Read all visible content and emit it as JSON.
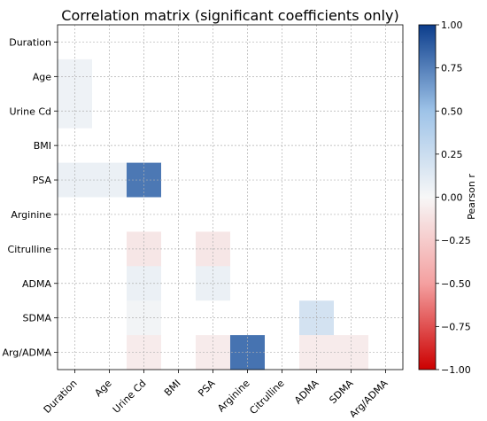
{
  "chart_data": {
    "type": "heatmap",
    "title": "Correlation matrix (significant coefficients only)",
    "variables": [
      "Duration",
      "Age",
      "Urine Cd",
      "BMI",
      "PSA",
      "Arginine",
      "Citrulline",
      "ADMA",
      "SDMA",
      "Arg/ADMA"
    ],
    "x_labels": [
      "Duration",
      "Age",
      "Urine Cd",
      "BMI",
      "PSA",
      "Arginine",
      "Citrulline",
      "ADMA",
      "SDMA",
      "Arg/ADMA"
    ],
    "y_labels": [
      "Duration",
      "Age",
      "Urine Cd",
      "BMI",
      "PSA",
      "Arginine",
      "Citrulline",
      "ADMA",
      "SDMA",
      "Arg/ADMA"
    ],
    "values": [
      [
        0,
        0,
        0,
        0,
        0,
        0,
        0,
        0,
        0,
        0
      ],
      [
        0.05,
        0,
        0,
        0,
        0,
        0,
        0,
        0,
        0,
        0
      ],
      [
        0.05,
        0,
        0,
        0,
        0,
        0,
        0,
        0,
        0,
        0
      ],
      [
        0,
        0,
        0,
        0,
        0,
        0,
        0,
        0,
        0,
        0
      ],
      [
        0.07,
        0.07,
        0.78,
        0,
        0,
        0,
        0,
        0,
        0,
        0
      ],
      [
        0,
        0,
        0,
        0,
        0,
        0,
        0,
        0,
        0,
        0
      ],
      [
        0,
        0,
        -0.1,
        0,
        -0.1,
        0,
        0,
        0,
        0,
        0
      ],
      [
        0,
        0,
        0.07,
        0,
        0.07,
        0,
        0,
        0,
        0,
        0
      ],
      [
        0,
        0,
        0.03,
        0,
        0,
        0,
        0,
        0.2,
        0,
        0
      ],
      [
        0,
        0,
        -0.07,
        0,
        -0.07,
        0.8,
        0,
        -0.07,
        -0.07,
        0
      ]
    ],
    "colorbar": {
      "label": "Pearson r",
      "range": [
        -1.0,
        1.0
      ],
      "ticks": [
        "1.00",
        "0.75",
        "0.50",
        "0.25",
        "0.00",
        "−0.25",
        "−0.50",
        "−0.75",
        "−1.00"
      ],
      "tick_values": [
        1.0,
        0.75,
        0.5,
        0.25,
        0.0,
        -0.25,
        -0.5,
        -0.75,
        -1.0
      ],
      "colormap": [
        "#b2182b",
        "#d6604d",
        "#f4a582",
        "#fddbc7",
        "#f7f7f7",
        "#d1e5f0",
        "#92c5de",
        "#4393c3",
        "#2166ac"
      ],
      "colormap_name": "RdBu"
    },
    "grid": true,
    "legend": "colorbar right"
  }
}
